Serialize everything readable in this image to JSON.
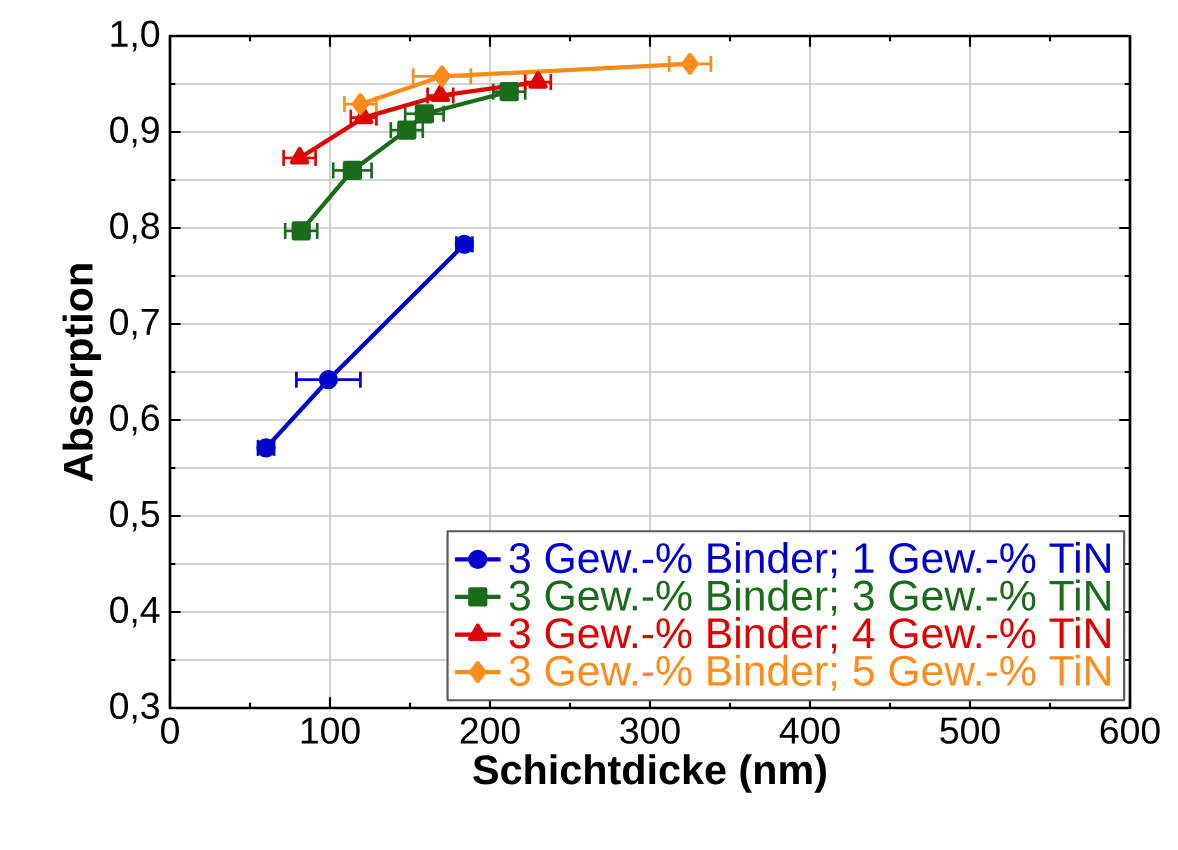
{
  "chart_data": {
    "type": "line",
    "xlabel": "Schichtdicke (nm)",
    "ylabel": "Absorption",
    "xlim": [
      0,
      600
    ],
    "xticks": [
      0,
      100,
      200,
      300,
      400,
      500,
      600
    ],
    "ylim": [
      0.3,
      1.0
    ],
    "yticks": [
      {
        "value": 0.3,
        "label": "0,3"
      },
      {
        "value": 0.4,
        "label": "0,4"
      },
      {
        "value": 0.5,
        "label": "0,5"
      },
      {
        "value": 0.6,
        "label": "0,6"
      },
      {
        "value": 0.7,
        "label": "0,7"
      },
      {
        "value": 0.8,
        "label": "0,8"
      },
      {
        "value": 0.9,
        "label": "0,9"
      },
      {
        "value": 1.0,
        "label": "1,0"
      }
    ],
    "grid": true,
    "legend": "bottom right",
    "series": [
      {
        "name": "3 Gew.-% Binder; 1 Gew.-% TiN",
        "color": "#0000cc",
        "marker": "circle",
        "x": [
          60,
          99,
          184
        ],
        "values": [
          0.571,
          0.642,
          0.783
        ],
        "xerrors": [
          5,
          20,
          5
        ]
      },
      {
        "name": "3 Gew.-% Binder; 3 Gew.-% TiN",
        "color": "#1a6b1a",
        "marker": "square",
        "x": [
          82,
          114,
          148,
          159,
          212
        ],
        "values": [
          0.797,
          0.86,
          0.902,
          0.919,
          0.942
        ],
        "xerrors": [
          10,
          12,
          10,
          12,
          10
        ]
      },
      {
        "name": "3 Gew.-% Binder; 4 Gew.-% TiN",
        "color": "#e00000",
        "marker": "triangle",
        "x": [
          81,
          121,
          169,
          230
        ],
        "values": [
          0.873,
          0.915,
          0.938,
          0.952
        ],
        "xerrors": [
          10,
          8,
          8,
          8
        ]
      },
      {
        "name": "3 Gew.-% Binder; 5 Gew.-% TiN",
        "color": "#ff8c1a",
        "marker": "diamond",
        "x": [
          119,
          170,
          325
        ],
        "values": [
          0.929,
          0.958,
          0.971
        ],
        "xerrors": [
          10,
          18,
          13
        ]
      }
    ]
  }
}
